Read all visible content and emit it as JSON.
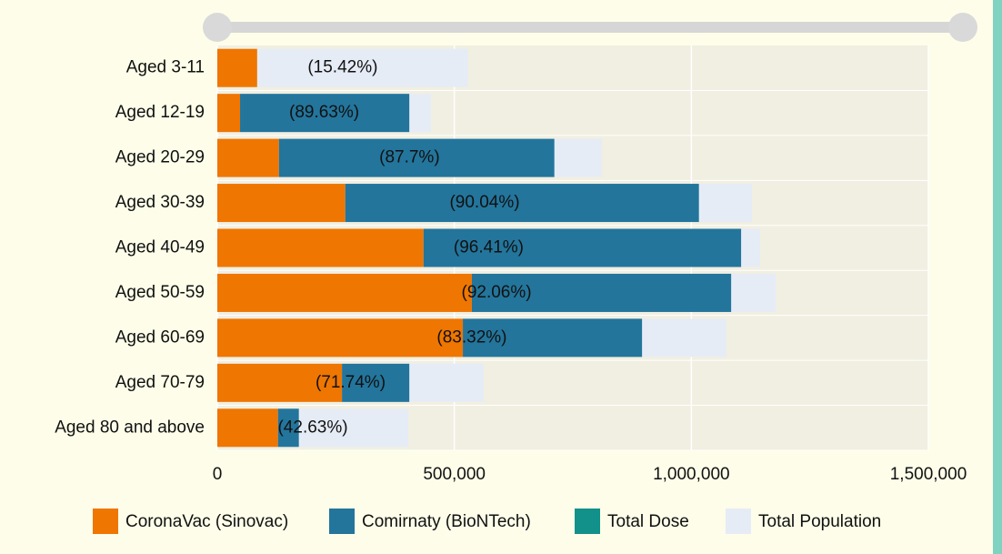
{
  "chart_data": {
    "type": "stacked-horizontal-bar",
    "categories": [
      "Aged 3-11",
      "Aged 12-19",
      "Aged 20-29",
      "Aged 30-39",
      "Aged 40-49",
      "Aged 50-59",
      "Aged 60-69",
      "Aged 70-79",
      "Aged 80 and above"
    ],
    "series": [
      {
        "name": "CoronaVac (Sinovac)",
        "color": "#ef7601",
        "values": [
          84000,
          48000,
          130000,
          270000,
          435000,
          537000,
          518000,
          263000,
          128000
        ]
      },
      {
        "name": "Comirnaty (BioNTech)",
        "color": "#23759c",
        "values": [
          null,
          357000,
          581000,
          746000,
          670000,
          547000,
          378000,
          142000,
          44000
        ]
      },
      {
        "name": "Total Dose",
        "color": "#12918a",
        "values": [
          null,
          null,
          null,
          null,
          null,
          null,
          null,
          null,
          null
        ]
      },
      {
        "name": "Total Population",
        "color": "#e6ecf6",
        "values": [
          529000,
          451000,
          811000,
          1128000,
          1145000,
          1178000,
          1074000,
          562000,
          403000
        ],
        "background": true
      }
    ],
    "annotations": [
      "(15.42%)",
      "(89.63%)",
      "(87.7%)",
      "(90.04%)",
      "(96.41%)",
      "(92.06%)",
      "(83.32%)",
      "(71.74%)",
      "(42.63%)"
    ],
    "xlim": [
      0,
      1500000
    ],
    "xticks": [
      0,
      {
        "value": 500000,
        "label": "500,000"
      },
      {
        "value": 1000000,
        "label": "1,000,000"
      },
      {
        "value": 1500000,
        "label": "1,500,000"
      }
    ],
    "grid": true,
    "legend": "bottom"
  }
}
